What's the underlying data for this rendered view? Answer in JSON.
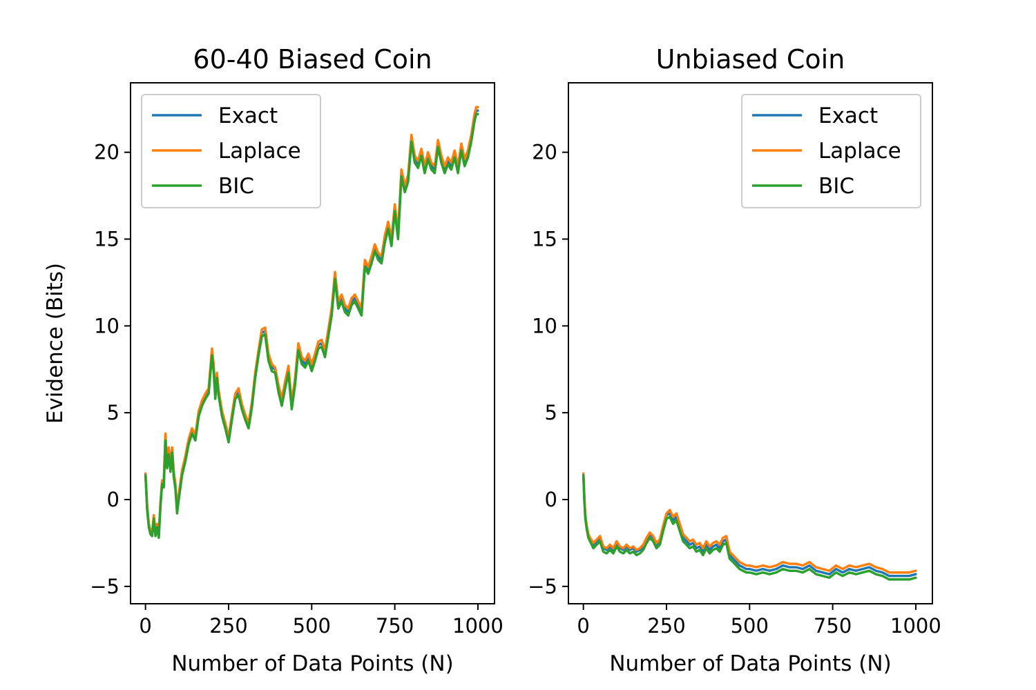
{
  "chart_data": [
    {
      "type": "line",
      "title": "60-40 Biased Coin",
      "xlabel": "Number of Data Points (N)",
      "ylabel": "Evidence (Bits)",
      "xlim": [
        -45,
        1050
      ],
      "ylim": [
        -6,
        24
      ],
      "xticks": [
        0,
        250,
        500,
        750,
        1000
      ],
      "xtick_labels": [
        "0",
        "250",
        "500",
        "750",
        "1000"
      ],
      "yticks": [
        -5,
        0,
        5,
        10,
        15,
        20
      ],
      "ytick_labels": [
        "−5",
        "0",
        "5",
        "10",
        "15",
        "20"
      ],
      "legend_loc": "upper-left",
      "x": [
        0,
        5,
        10,
        15,
        20,
        25,
        30,
        35,
        40,
        45,
        50,
        55,
        60,
        65,
        70,
        75,
        80,
        85,
        90,
        95,
        100,
        110,
        120,
        130,
        140,
        150,
        160,
        170,
        180,
        190,
        200,
        205,
        210,
        215,
        220,
        230,
        240,
        250,
        260,
        270,
        280,
        290,
        300,
        310,
        320,
        330,
        340,
        350,
        360,
        370,
        380,
        390,
        400,
        410,
        420,
        430,
        440,
        450,
        460,
        470,
        480,
        490,
        500,
        510,
        520,
        530,
        540,
        550,
        560,
        570,
        580,
        590,
        600,
        610,
        620,
        630,
        640,
        650,
        660,
        670,
        680,
        690,
        700,
        710,
        720,
        730,
        740,
        750,
        760,
        770,
        780,
        790,
        800,
        810,
        820,
        830,
        840,
        850,
        860,
        870,
        880,
        890,
        900,
        910,
        920,
        930,
        940,
        950,
        960,
        970,
        980,
        990,
        995,
        1000
      ],
      "series": [
        {
          "name": "Exact",
          "color": "#1f77b4",
          "values": [
            1.4,
            -0.5,
            -1.5,
            -1.9,
            -2.0,
            -1.0,
            -2.0,
            -1.5,
            -2.1,
            -0.3,
            1.0,
            0.8,
            3.6,
            2.0,
            2.8,
            1.8,
            2.9,
            1.5,
            0.8,
            -0.6,
            0.2,
            1.6,
            2.4,
            3.4,
            4.0,
            3.6,
            5.0,
            5.6,
            6.0,
            6.3,
            8.5,
            7.6,
            6.0,
            7.2,
            6.2,
            5.0,
            4.3,
            3.5,
            4.8,
            6.0,
            6.2,
            5.4,
            4.8,
            4.3,
            5.5,
            7.2,
            8.5,
            9.6,
            9.7,
            8.2,
            7.6,
            7.5,
            6.4,
            5.6,
            6.6,
            7.5,
            5.4,
            6.8,
            8.8,
            8.0,
            7.8,
            8.2,
            7.6,
            8.2,
            8.9,
            9.0,
            8.4,
            9.6,
            10.8,
            12.9,
            11.2,
            11.6,
            11.0,
            10.8,
            11.4,
            11.6,
            11.2,
            10.8,
            13.6,
            13.2,
            13.8,
            14.5,
            14.0,
            13.8,
            15.0,
            15.8,
            14.8,
            16.8,
            15.2,
            18.8,
            17.9,
            18.5,
            20.8,
            19.6,
            19.3,
            20.0,
            19.0,
            19.8,
            19.2,
            19.0,
            20.5,
            19.6,
            19.0,
            19.5,
            19.2,
            19.9,
            19.0,
            20.3,
            19.4,
            19.9,
            20.8,
            22.0,
            22.4,
            22.4
          ]
        },
        {
          "name": "Laplace",
          "color": "#ff7f0e",
          "values": [
            1.5,
            -0.4,
            -1.4,
            -1.8,
            -1.9,
            -0.9,
            -1.9,
            -1.4,
            -2.0,
            -0.2,
            1.1,
            0.9,
            3.8,
            2.1,
            3.0,
            1.9,
            3.0,
            1.6,
            0.9,
            -0.5,
            0.3,
            1.7,
            2.5,
            3.5,
            4.1,
            3.7,
            5.1,
            5.7,
            6.1,
            6.4,
            8.7,
            7.8,
            6.2,
            7.3,
            6.3,
            5.1,
            4.4,
            3.6,
            4.9,
            6.1,
            6.4,
            5.5,
            4.9,
            4.4,
            5.6,
            7.3,
            8.6,
            9.8,
            9.9,
            8.4,
            7.8,
            7.6,
            6.6,
            5.8,
            6.8,
            7.7,
            5.6,
            7.0,
            9.0,
            8.2,
            8.0,
            8.4,
            7.8,
            8.4,
            9.1,
            9.2,
            8.6,
            9.8,
            11.0,
            13.1,
            11.4,
            11.8,
            11.2,
            11.0,
            11.6,
            11.8,
            11.4,
            11.0,
            13.8,
            13.4,
            14.0,
            14.7,
            14.2,
            14.0,
            15.2,
            16.0,
            15.0,
            17.0,
            15.4,
            19.0,
            18.1,
            18.7,
            21.0,
            19.8,
            19.5,
            20.2,
            19.2,
            20.0,
            19.4,
            19.2,
            20.7,
            19.8,
            19.2,
            19.7,
            19.4,
            20.1,
            19.2,
            20.5,
            19.6,
            20.1,
            21.0,
            22.2,
            22.6,
            22.6
          ]
        },
        {
          "name": "BIC",
          "color": "#2ca02c",
          "values": [
            1.4,
            -0.6,
            -1.6,
            -2.0,
            -2.1,
            -1.1,
            -2.1,
            -1.6,
            -2.2,
            -0.4,
            0.9,
            0.7,
            3.4,
            1.8,
            2.6,
            1.6,
            2.7,
            1.3,
            0.6,
            -0.8,
            0.0,
            1.4,
            2.2,
            3.2,
            3.8,
            3.4,
            4.8,
            5.4,
            5.8,
            6.1,
            8.3,
            7.4,
            5.8,
            7.0,
            6.0,
            4.8,
            4.1,
            3.3,
            4.6,
            5.8,
            6.0,
            5.2,
            4.6,
            4.1,
            5.3,
            7.0,
            8.3,
            9.4,
            9.5,
            8.0,
            7.4,
            7.3,
            6.2,
            5.4,
            6.4,
            7.3,
            5.2,
            6.6,
            8.6,
            7.8,
            7.6,
            8.0,
            7.4,
            8.0,
            8.7,
            8.8,
            8.2,
            9.4,
            10.6,
            12.7,
            11.0,
            11.4,
            10.8,
            10.6,
            11.2,
            11.4,
            11.0,
            10.6,
            13.4,
            13.0,
            13.6,
            14.3,
            13.8,
            13.6,
            14.8,
            15.6,
            14.6,
            16.6,
            15.0,
            18.6,
            17.7,
            18.3,
            20.6,
            19.4,
            19.1,
            19.8,
            18.8,
            19.6,
            19.0,
            18.8,
            20.3,
            19.4,
            18.8,
            19.3,
            19.0,
            19.7,
            18.8,
            20.1,
            19.2,
            19.7,
            20.6,
            21.8,
            22.2,
            22.2
          ]
        }
      ]
    },
    {
      "type": "line",
      "title": "Unbiased Coin",
      "xlabel": "Number of Data Points (N)",
      "ylabel": "",
      "xlim": [
        -45,
        1050
      ],
      "ylim": [
        -6,
        24
      ],
      "xticks": [
        0,
        250,
        500,
        750,
        1000
      ],
      "xtick_labels": [
        "0",
        "250",
        "500",
        "750",
        "1000"
      ],
      "yticks": [
        -5,
        0,
        5,
        10,
        15,
        20
      ],
      "ytick_labels": [
        "−5",
        "0",
        "5",
        "10",
        "15",
        "20"
      ],
      "legend_loc": "upper-right",
      "x": [
        0,
        3,
        6,
        10,
        15,
        20,
        30,
        40,
        50,
        60,
        70,
        80,
        90,
        100,
        110,
        120,
        130,
        140,
        150,
        160,
        170,
        180,
        190,
        200,
        210,
        220,
        230,
        240,
        250,
        260,
        270,
        280,
        290,
        300,
        310,
        320,
        330,
        340,
        350,
        360,
        370,
        380,
        390,
        400,
        410,
        420,
        430,
        440,
        450,
        460,
        470,
        480,
        490,
        500,
        520,
        540,
        560,
        580,
        600,
        620,
        640,
        660,
        680,
        700,
        720,
        740,
        760,
        780,
        800,
        820,
        840,
        860,
        880,
        900,
        920,
        940,
        960,
        980,
        1000
      ],
      "series": [
        {
          "name": "Exact",
          "color": "#1f77b4",
          "values": [
            1.4,
            0.0,
            -1.0,
            -1.6,
            -2.1,
            -2.3,
            -2.6,
            -2.4,
            -2.2,
            -2.8,
            -2.9,
            -2.7,
            -2.9,
            -2.5,
            -2.8,
            -2.9,
            -2.7,
            -2.9,
            -2.8,
            -3.0,
            -2.9,
            -2.7,
            -2.3,
            -2.0,
            -2.2,
            -2.6,
            -2.4,
            -1.6,
            -0.9,
            -0.8,
            -1.2,
            -1.0,
            -1.6,
            -2.2,
            -2.4,
            -2.6,
            -2.5,
            -2.8,
            -2.7,
            -3.0,
            -2.6,
            -2.9,
            -2.7,
            -2.6,
            -2.8,
            -2.4,
            -2.3,
            -3.2,
            -3.4,
            -3.6,
            -3.8,
            -3.9,
            -4.0,
            -4.0,
            -4.1,
            -4.0,
            -4.1,
            -4.0,
            -3.8,
            -3.9,
            -3.9,
            -4.0,
            -3.8,
            -4.1,
            -4.2,
            -4.3,
            -4.0,
            -4.2,
            -4.0,
            -4.1,
            -4.0,
            -3.9,
            -4.1,
            -4.2,
            -4.4,
            -4.4,
            -4.4,
            -4.4,
            -4.3
          ]
        },
        {
          "name": "Laplace",
          "color": "#ff7f0e",
          "values": [
            1.5,
            0.1,
            -0.9,
            -1.5,
            -2.0,
            -2.2,
            -2.5,
            -2.3,
            -2.1,
            -2.7,
            -2.8,
            -2.6,
            -2.8,
            -2.4,
            -2.7,
            -2.8,
            -2.6,
            -2.8,
            -2.7,
            -2.9,
            -2.8,
            -2.6,
            -2.2,
            -1.9,
            -2.1,
            -2.5,
            -2.3,
            -1.5,
            -0.8,
            -0.6,
            -1.0,
            -0.8,
            -1.4,
            -2.0,
            -2.2,
            -2.4,
            -2.3,
            -2.6,
            -2.5,
            -2.8,
            -2.4,
            -2.7,
            -2.5,
            -2.4,
            -2.6,
            -2.2,
            -2.1,
            -3.0,
            -3.2,
            -3.4,
            -3.6,
            -3.7,
            -3.8,
            -3.8,
            -3.9,
            -3.8,
            -3.9,
            -3.8,
            -3.6,
            -3.7,
            -3.7,
            -3.8,
            -3.6,
            -3.9,
            -4.0,
            -4.1,
            -3.8,
            -4.0,
            -3.8,
            -3.9,
            -3.8,
            -3.7,
            -3.9,
            -4.0,
            -4.2,
            -4.2,
            -4.2,
            -4.2,
            -4.1
          ]
        },
        {
          "name": "BIC",
          "color": "#2ca02c",
          "values": [
            1.4,
            -0.1,
            -1.1,
            -1.7,
            -2.2,
            -2.4,
            -2.8,
            -2.6,
            -2.4,
            -3.0,
            -3.1,
            -2.9,
            -3.1,
            -2.7,
            -3.0,
            -3.1,
            -2.9,
            -3.1,
            -3.0,
            -3.2,
            -3.1,
            -2.9,
            -2.5,
            -2.2,
            -2.4,
            -2.8,
            -2.6,
            -1.8,
            -1.1,
            -1.0,
            -1.4,
            -1.2,
            -1.8,
            -2.4,
            -2.6,
            -2.8,
            -2.7,
            -3.0,
            -2.9,
            -3.2,
            -2.8,
            -3.1,
            -2.9,
            -2.8,
            -3.0,
            -2.6,
            -2.5,
            -3.4,
            -3.6,
            -3.8,
            -4.0,
            -4.1,
            -4.2,
            -4.2,
            -4.3,
            -4.2,
            -4.3,
            -4.2,
            -4.0,
            -4.1,
            -4.1,
            -4.2,
            -4.0,
            -4.3,
            -4.4,
            -4.5,
            -4.2,
            -4.4,
            -4.2,
            -4.3,
            -4.2,
            -4.1,
            -4.3,
            -4.4,
            -4.6,
            -4.6,
            -4.6,
            -4.6,
            -4.5
          ]
        }
      ]
    }
  ]
}
